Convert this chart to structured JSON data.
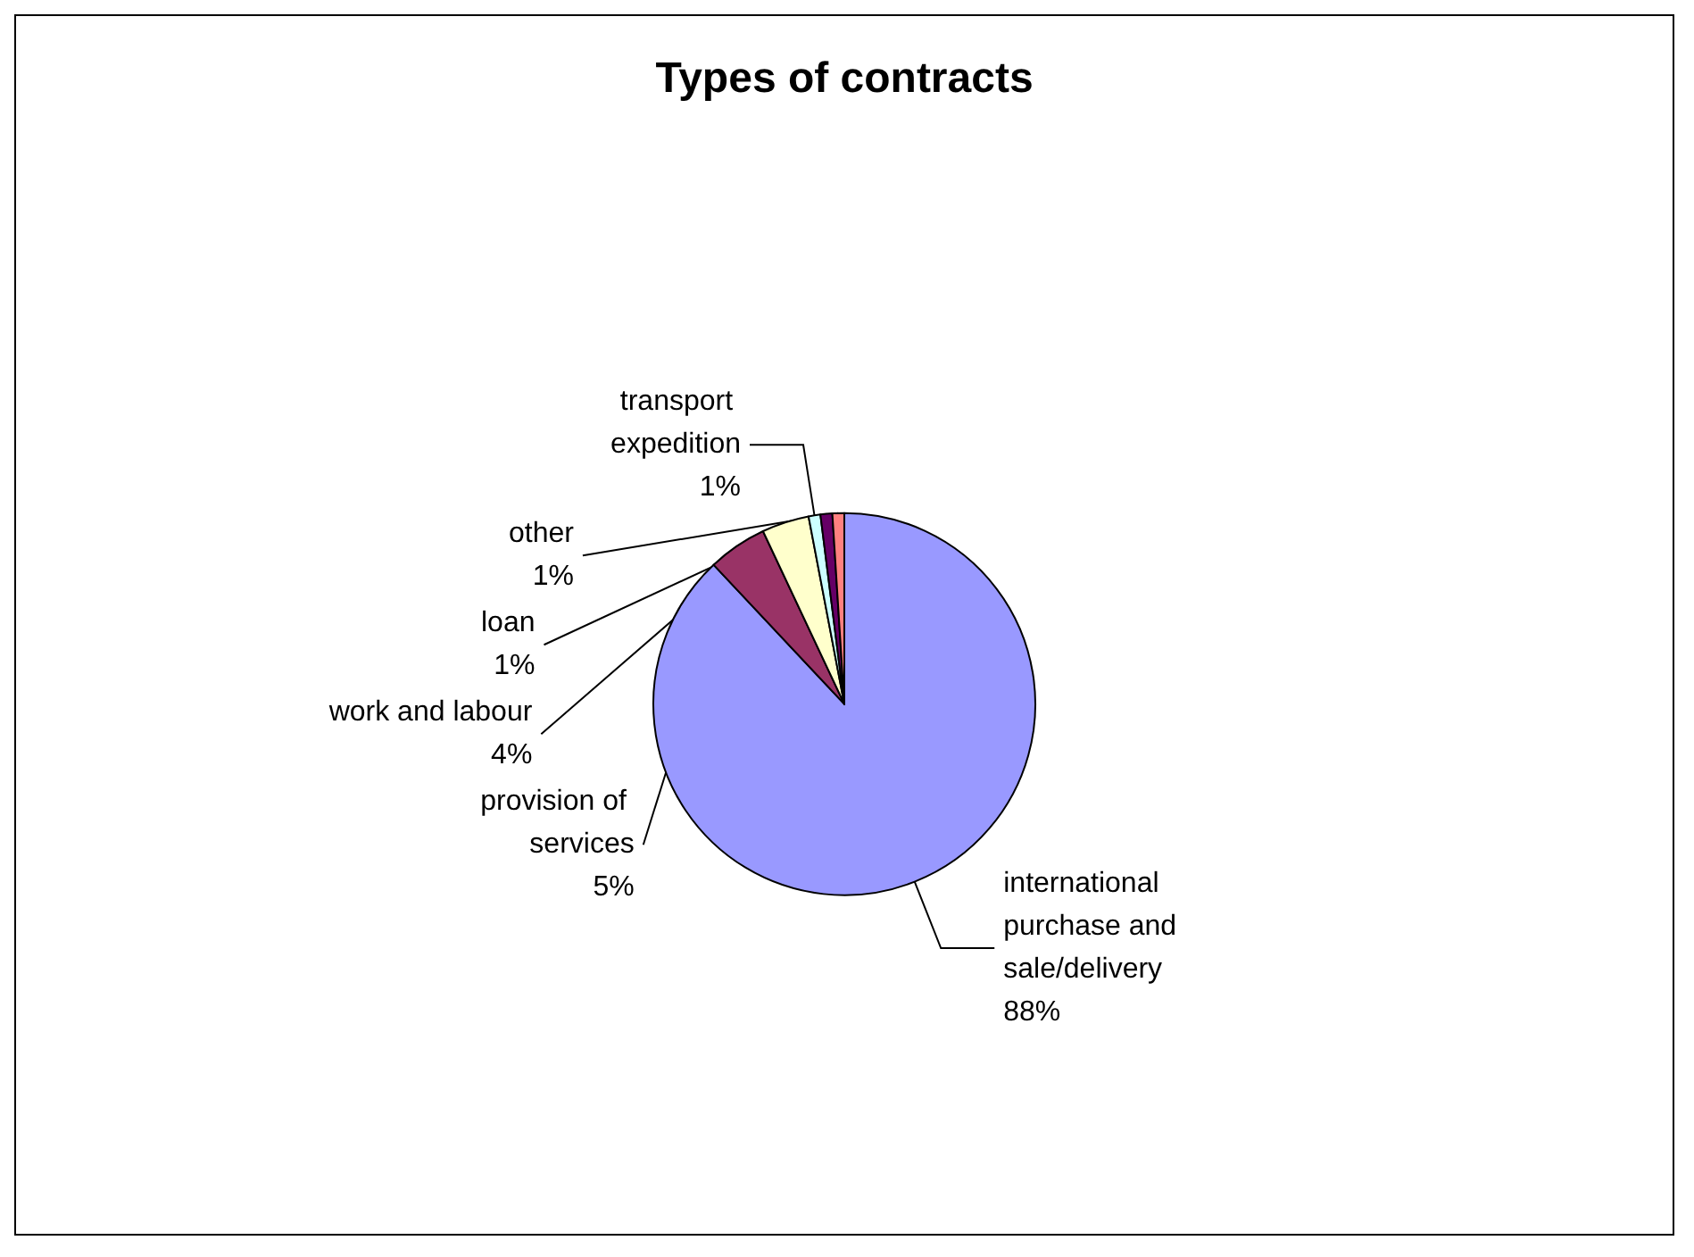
{
  "chart_data": {
    "type": "pie",
    "title": "Types of contracts",
    "categories": [
      "international purchase and sale/delivery",
      "provision of services",
      "work and labour",
      "transport expedition",
      "loan",
      "other"
    ],
    "values": [
      88,
      5,
      4,
      1,
      1,
      1
    ],
    "value_labels": [
      "88%",
      "5%",
      "4%",
      "1%",
      "1%",
      "1%"
    ],
    "colors": [
      "#9999ff",
      "#993366",
      "#ffffcc",
      "#ccffff",
      "#660066",
      "#ff8080"
    ],
    "legend": false
  }
}
